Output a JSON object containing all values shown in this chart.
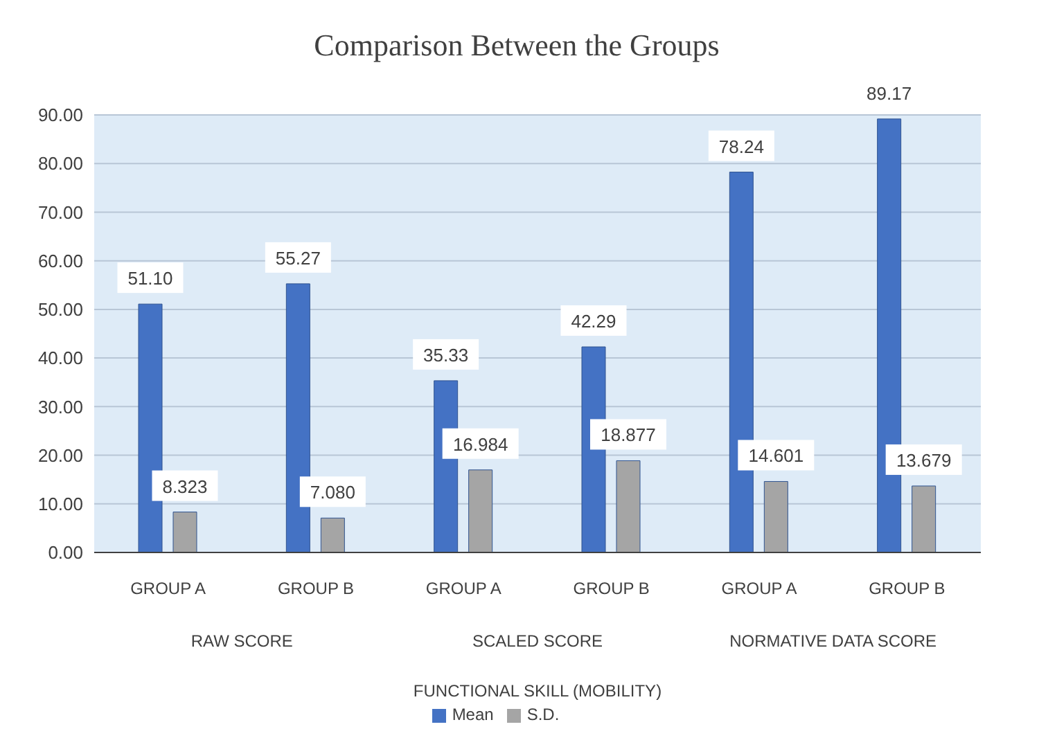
{
  "chart_data": {
    "type": "bar",
    "title": "Comparison Between the Groups",
    "xlabel": "FUNCTIONAL SKILL (MOBILITY)",
    "categories": [
      "GROUP A",
      "GROUP B",
      "GROUP A",
      "GROUP B",
      "GROUP A",
      "GROUP B"
    ],
    "annotations": [
      "RAW SCORE",
      "SCALED SCORE",
      "NORMATIVE DATA SCORE"
    ],
    "series": [
      {
        "name": "Mean",
        "color": "#4472c4",
        "values": [
          51.1,
          55.27,
          35.33,
          42.29,
          78.24,
          89.17
        ],
        "value_labels": [
          "51.10",
          "55.27",
          "35.33",
          "42.29",
          "78.24",
          "89.17"
        ]
      },
      {
        "name": "S.D.",
        "color": "#a5a5a5",
        "values": [
          8.323,
          7.08,
          16.984,
          18.877,
          14.601,
          13.679
        ],
        "value_labels": [
          "8.323",
          "7.080",
          "16.984",
          "18.877",
          "14.601",
          "13.679"
        ]
      }
    ],
    "ylim": [
      0,
      90
    ],
    "yticks": [
      {
        "value": 0,
        "label": "0.00"
      },
      {
        "value": 10,
        "label": "10.00"
      },
      {
        "value": 20,
        "label": "20.00"
      },
      {
        "value": 30,
        "label": "30.00"
      },
      {
        "value": 40,
        "label": "40.00"
      },
      {
        "value": 50,
        "label": "50.00"
      },
      {
        "value": 60,
        "label": "60.00"
      },
      {
        "value": 70,
        "label": "70.00"
      },
      {
        "value": 80,
        "label": "80.00"
      },
      {
        "value": 90,
        "label": "90.00"
      }
    ],
    "grid": "y",
    "legend": "bottom"
  }
}
